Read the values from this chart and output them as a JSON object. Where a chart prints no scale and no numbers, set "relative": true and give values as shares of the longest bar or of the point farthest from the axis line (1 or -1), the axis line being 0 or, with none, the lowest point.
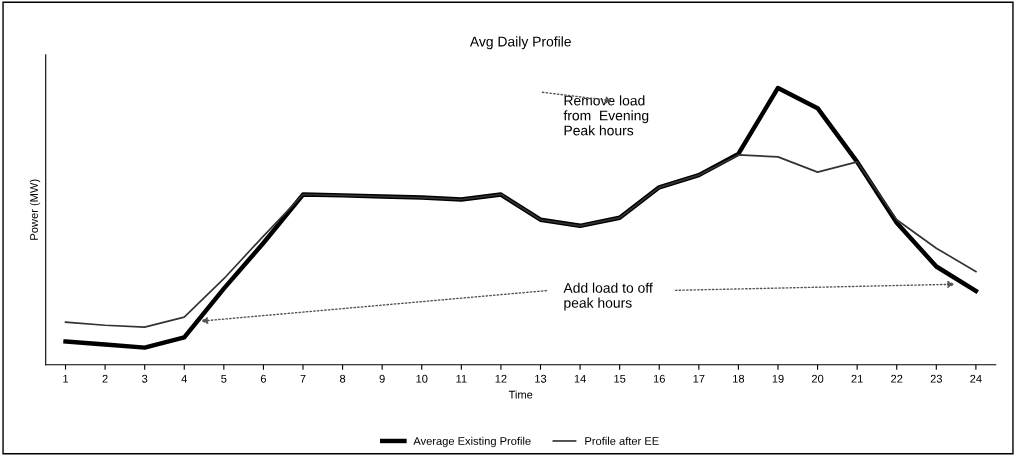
{
  "chart_data": {
    "type": "line",
    "title": "Avg Daily Profile",
    "xlabel": "Time",
    "ylabel": "Power (MW)",
    "relative": true,
    "categories": [
      "1",
      "2",
      "3",
      "4",
      "5",
      "6",
      "7",
      "8",
      "9",
      "10",
      "11",
      "12",
      "13",
      "14",
      "15",
      "16",
      "17",
      "18",
      "19",
      "20",
      "21",
      "22",
      "23",
      "24"
    ],
    "series": [
      {
        "name": "Average Existing Profile",
        "color": "#000000",
        "values": [
          0.084,
          0.073,
          0.062,
          0.099,
          0.275,
          0.44,
          0.615,
          0.612,
          0.608,
          0.604,
          0.597,
          0.615,
          0.524,
          0.502,
          0.531,
          0.641,
          0.685,
          0.762,
          1.0,
          0.927,
          0.733,
          0.513,
          0.355,
          0.267
        ]
      },
      {
        "name": "Profile after EE",
        "color": "#333333",
        "values": [
          0.154,
          0.143,
          0.136,
          0.172,
          0.311,
          0.465,
          0.615,
          0.612,
          0.608,
          0.604,
          0.597,
          0.615,
          0.524,
          0.502,
          0.531,
          0.641,
          0.685,
          0.758,
          0.751,
          0.696,
          0.733,
          0.524,
          0.421,
          0.337
        ]
      }
    ],
    "annotations": [
      "Remove load\nfrom  Evening\nPeak hours",
      "Add load to off\npeak hours"
    ],
    "legend": "bottom"
  }
}
